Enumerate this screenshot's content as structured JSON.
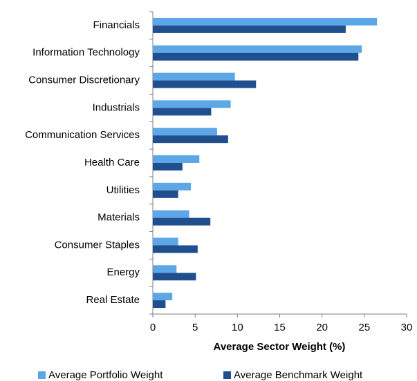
{
  "chart_data": {
    "type": "barh",
    "xlabel": "Average Sector Weight (%)",
    "categories": [
      "Financials",
      "Information Technology",
      "Consumer Discretionary",
      "Industrials",
      "Communication Services",
      "Health Care",
      "Utilities",
      "Materials",
      "Consumer Staples",
      "Energy",
      "Real Estate"
    ],
    "series": [
      {
        "name": "Average Portfolio Weight",
        "color": "#5ea7e6",
        "values": [
          26.5,
          24.7,
          9.7,
          9.2,
          7.6,
          5.5,
          4.5,
          4.3,
          3.0,
          2.8,
          2.3
        ]
      },
      {
        "name": "Average Benchmark Weight",
        "color": "#1f4f8f",
        "values": [
          22.8,
          24.3,
          12.2,
          6.9,
          8.9,
          3.5,
          3.0,
          6.8,
          5.3,
          5.1,
          1.5
        ]
      }
    ],
    "xlim": [
      0,
      30
    ],
    "xticks": [
      0,
      5,
      10,
      15,
      20,
      25,
      30
    ],
    "legend": "bottom"
  }
}
